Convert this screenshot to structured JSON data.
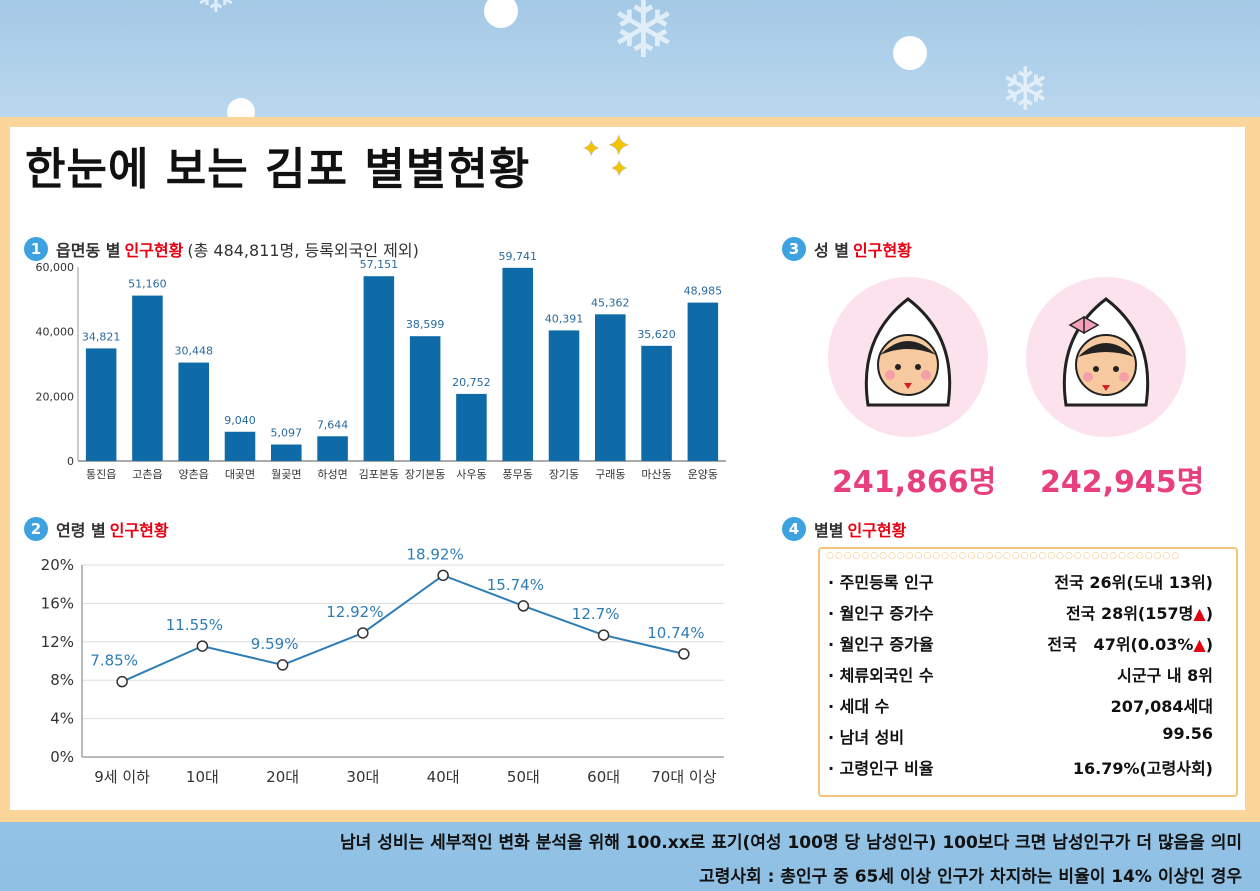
{
  "title": "한눈에 보는 김포 별별현황",
  "sections": {
    "s1": {
      "num": "1",
      "label": "읍면동 별",
      "highlight": "인구현황",
      "extra": "(총 484,811명, 등록외국인 제외)"
    },
    "s2": {
      "num": "2",
      "label": "연령 별",
      "highlight": "인구현황"
    },
    "s3": {
      "num": "3",
      "label": "성 별",
      "highlight": "인구현황"
    },
    "s4": {
      "num": "4",
      "label": "별별",
      "highlight": "인구현황"
    }
  },
  "chart_data": [
    {
      "type": "bar",
      "categories": [
        "통진읍",
        "고촌읍",
        "양촌읍",
        "대곶면",
        "월곶면",
        "하성면",
        "김포본동",
        "장기본동",
        "사우동",
        "풍무동",
        "장기동",
        "구래동",
        "마산동",
        "운양동"
      ],
      "values": [
        34821,
        51160,
        30448,
        9040,
        5097,
        7644,
        57151,
        38599,
        20752,
        59741,
        40391,
        45362,
        35620,
        48985
      ],
      "value_labels": [
        "34,821",
        "51,160",
        "30,448",
        "9,040",
        "5,097",
        "7,644",
        "57,151",
        "38,599",
        "20,752",
        "59,741",
        "40,391",
        "45,362",
        "35,620",
        "48,985"
      ],
      "yticks": [
        "0",
        "20,000",
        "40,000",
        "60,000"
      ],
      "ylim": [
        0,
        60000
      ],
      "color": "#0f6aa8"
    },
    {
      "type": "line",
      "categories": [
        "9세 이하",
        "10대",
        "20대",
        "30대",
        "40대",
        "50대",
        "60대",
        "70대 이상"
      ],
      "values": [
        7.85,
        11.55,
        9.59,
        12.92,
        18.92,
        15.74,
        12.7,
        10.74
      ],
      "value_labels": [
        "7.85%",
        "11.55%",
        "9.59%",
        "12.92%",
        "18.92%",
        "15.74%",
        "12.7%",
        "10.74%"
      ],
      "yticks": [
        "0%",
        "4%",
        "8%",
        "12%",
        "16%",
        "20%"
      ],
      "ylim": [
        0,
        20
      ],
      "color": "#2e7db5"
    }
  ],
  "gender": {
    "male": "241,866명",
    "female": "242,945명"
  },
  "stats": [
    {
      "label": "· 주민등록 인구",
      "value": "전국 26위(도내 13위)"
    },
    {
      "label": "· 월인구 증가수",
      "value": "전국 28위(157명",
      "mark": "▲)"
    },
    {
      "label": "· 월인구 증가율",
      "value": "전국   47위(0.03%",
      "mark": "▲)"
    },
    {
      "label": "· 체류외국인 수",
      "value": "시군구 내 8위"
    },
    {
      "label": "· 세대 수",
      "value": "207,084세대"
    },
    {
      "label": "· 남녀 성비",
      "value": "99.56"
    },
    {
      "label": "· 고령인구 비율",
      "value": "16.79%(고령사회)"
    }
  ],
  "notes": [
    "남녀 성비는 세부적인 변화 분석을 위해 100.xx로 표기(여성 100명 당 남성인구) 100보다 크면 남성인구가 더 많음을 의미",
    "고령사회 : 총인구 중 65세 이상 인구가 차지하는 비율이 14% 이상인 경우"
  ]
}
